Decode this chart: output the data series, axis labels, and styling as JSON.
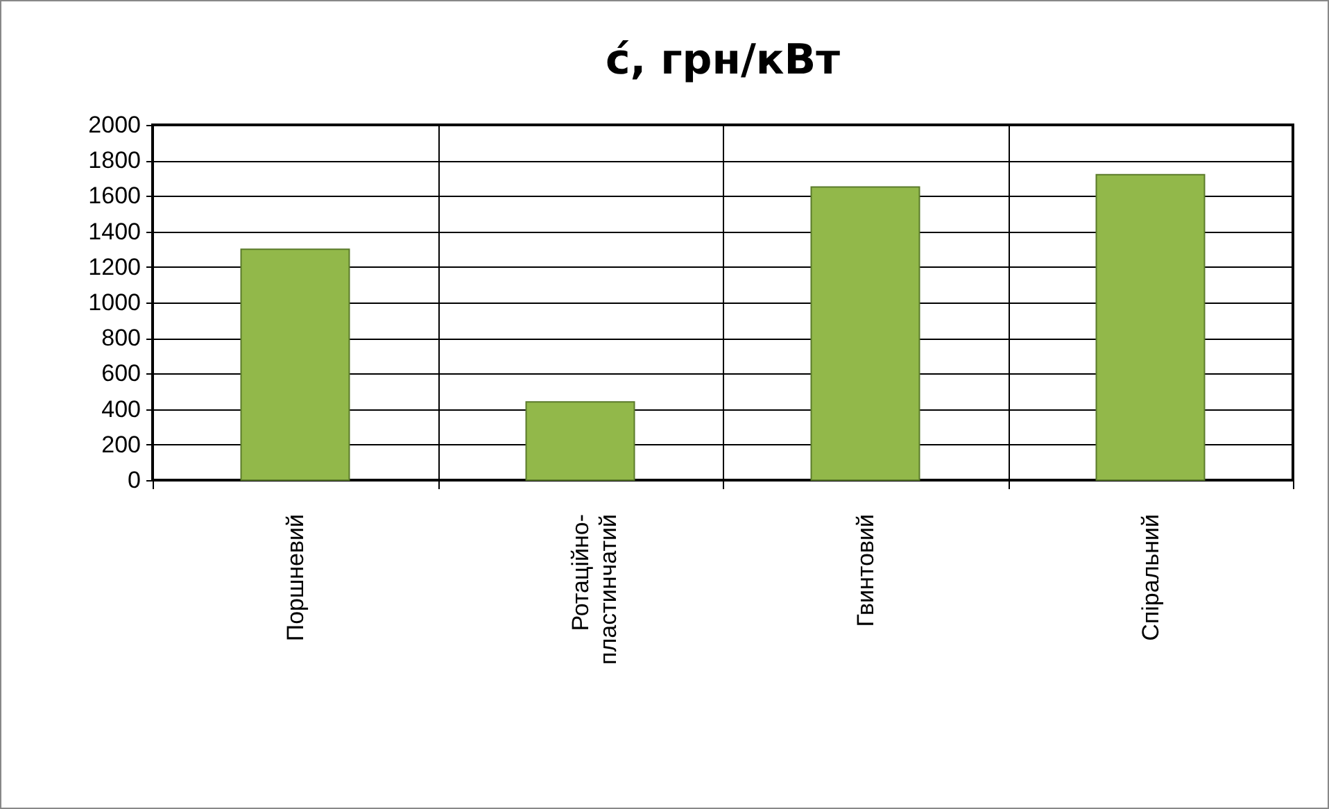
{
  "chart_data": {
    "type": "bar",
    "title": "ć, грн/кВт",
    "categories": [
      "Поршневий",
      "Ротаційно-\nпластинчатий",
      "Гвинтовий",
      "Спіральний"
    ],
    "values": [
      1300,
      440,
      1650,
      1720
    ],
    "color": "#92b84a",
    "ylim": [
      0,
      2000
    ],
    "yticks": [
      0,
      200,
      400,
      600,
      800,
      1000,
      1200,
      1400,
      1600,
      1800,
      2000
    ],
    "grid": true
  }
}
